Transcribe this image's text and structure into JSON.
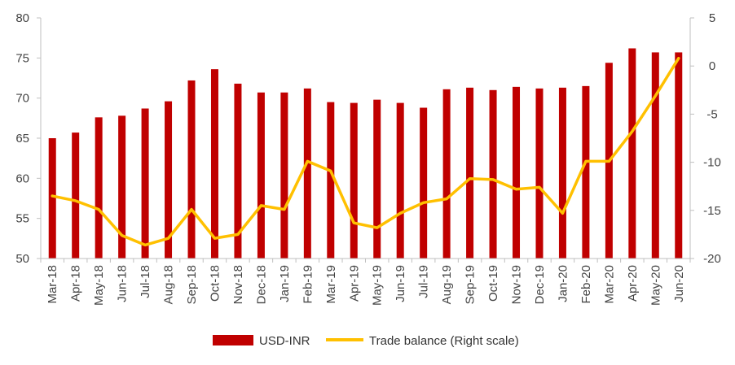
{
  "chart_data": {
    "type": "bar",
    "categories": [
      "Mar-18",
      "Apr-18",
      "May-18",
      "Jun-18",
      "Jul-18",
      "Aug-18",
      "Sep-18",
      "Oct-18",
      "Nov-18",
      "Dec-18",
      "Jan-19",
      "Feb-19",
      "Mar-19",
      "Apr-19",
      "May-19",
      "Jun-19",
      "Jul-19",
      "Aug-19",
      "Sep-19",
      "Oct-19",
      "Nov-19",
      "Dec-19",
      "Jan-20",
      "Feb-20",
      "Mar-20",
      "Apr-20",
      "May-20",
      "Jun-20"
    ],
    "series": [
      {
        "name": "USD-INR",
        "type": "bar",
        "axis": "left",
        "color": "#C00000",
        "values": [
          65.0,
          65.7,
          67.6,
          67.8,
          68.7,
          69.6,
          72.2,
          73.6,
          71.8,
          70.7,
          70.7,
          71.2,
          69.5,
          69.4,
          69.8,
          69.4,
          68.8,
          71.1,
          71.3,
          71.0,
          71.4,
          71.2,
          71.3,
          71.5,
          74.4,
          76.2,
          75.7,
          75.7
        ]
      },
      {
        "name": "Trade balance (Right scale)",
        "type": "line",
        "axis": "right",
        "color": "#FFC000",
        "values": [
          -13.5,
          -14.0,
          -14.9,
          -17.6,
          -18.6,
          -17.9,
          -14.9,
          -17.9,
          -17.5,
          -14.5,
          -14.9,
          -9.9,
          -10.9,
          -16.3,
          -16.8,
          -15.3,
          -14.2,
          -13.8,
          -11.7,
          -11.8,
          -12.8,
          -12.6,
          -15.3,
          -9.9,
          -9.9,
          -6.8,
          -3.1,
          0.8
        ]
      }
    ],
    "yaxis_left": {
      "min": 50,
      "max": 80,
      "ticks": [
        50,
        55,
        60,
        65,
        70,
        75,
        80
      ]
    },
    "yaxis_right": {
      "min": -20,
      "max": 5,
      "ticks": [
        -20,
        -15,
        -10,
        -5,
        0,
        5
      ]
    },
    "grid": false,
    "legend_position": "bottom"
  }
}
